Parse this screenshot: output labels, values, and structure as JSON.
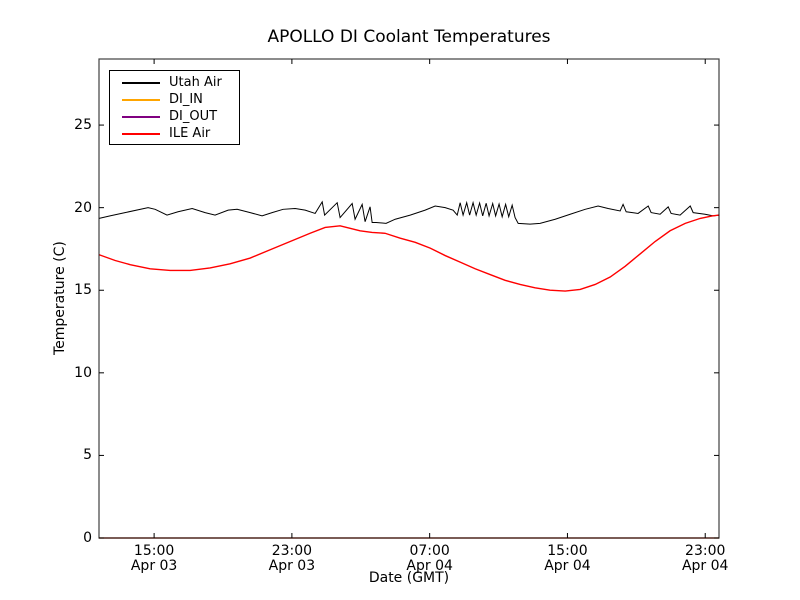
{
  "chart_data": {
    "type": "line",
    "title": "APOLLO DI Coolant Temperatures",
    "xlabel": "Date (GMT)",
    "ylabel": "Temperature (C)",
    "grid": false,
    "legend_position": "upper left",
    "x_unit": "hours since Apr 03 00:00 GMT",
    "xlim": [
      11.8,
      47.8
    ],
    "ylim": [
      0,
      29
    ],
    "y_ticks": [
      {
        "value": 0,
        "label": "0"
      },
      {
        "value": 5,
        "label": "5"
      },
      {
        "value": 10,
        "label": "10"
      },
      {
        "value": 15,
        "label": "15"
      },
      {
        "value": 20,
        "label": "20"
      },
      {
        "value": 25,
        "label": "25"
      }
    ],
    "x_ticks": [
      {
        "value": 15,
        "time": "15:00",
        "date": "Apr 03"
      },
      {
        "value": 23,
        "time": "23:00",
        "date": "Apr 03"
      },
      {
        "value": 31,
        "time": "07:00",
        "date": "Apr 04"
      },
      {
        "value": 39,
        "time": "15:00",
        "date": "Apr 04"
      },
      {
        "value": 47,
        "time": "23:00",
        "date": "Apr 04"
      }
    ],
    "series": [
      {
        "name": "Utah Air",
        "color": "#000000",
        "width": 1,
        "points": [
          [
            11.81,
            19.35
          ],
          [
            12.44,
            19.5
          ],
          [
            13.31,
            19.7
          ],
          [
            14.65,
            20.0
          ],
          [
            15.06,
            19.9
          ],
          [
            15.75,
            19.55
          ],
          [
            16.39,
            19.75
          ],
          [
            17.21,
            19.95
          ],
          [
            17.96,
            19.7
          ],
          [
            18.54,
            19.55
          ],
          [
            19.3,
            19.85
          ],
          [
            19.82,
            19.9
          ],
          [
            20.58,
            19.7
          ],
          [
            21.27,
            19.5
          ],
          [
            21.85,
            19.7
          ],
          [
            22.49,
            19.9
          ],
          [
            23.19,
            19.95
          ],
          [
            23.77,
            19.85
          ],
          [
            24.35,
            19.65
          ],
          [
            24.76,
            20.35
          ],
          [
            24.9,
            19.55
          ],
          [
            25.63,
            20.3
          ],
          [
            25.8,
            19.4
          ],
          [
            26.5,
            20.25
          ],
          [
            26.67,
            19.3
          ],
          [
            27.08,
            20.2
          ],
          [
            27.25,
            19.15
          ],
          [
            27.54,
            20.05
          ],
          [
            27.66,
            19.1
          ],
          [
            27.89,
            19.1
          ],
          [
            28.47,
            19.05
          ],
          [
            29.0,
            19.3
          ],
          [
            29.87,
            19.55
          ],
          [
            30.74,
            19.85
          ],
          [
            31.32,
            20.1
          ],
          [
            31.9,
            20.0
          ],
          [
            32.36,
            19.85
          ],
          [
            32.6,
            19.55
          ],
          [
            32.77,
            20.3
          ],
          [
            32.94,
            19.55
          ],
          [
            33.15,
            20.3
          ],
          [
            33.32,
            19.55
          ],
          [
            33.52,
            20.3
          ],
          [
            33.7,
            19.55
          ],
          [
            33.9,
            20.28
          ],
          [
            34.08,
            19.5
          ],
          [
            34.28,
            20.27
          ],
          [
            34.45,
            19.5
          ],
          [
            34.66,
            20.25
          ],
          [
            34.83,
            19.5
          ],
          [
            35.03,
            20.22
          ],
          [
            35.21,
            19.45
          ],
          [
            35.41,
            20.2
          ],
          [
            35.59,
            19.45
          ],
          [
            35.79,
            20.15
          ],
          [
            35.96,
            19.4
          ],
          [
            36.14,
            19.05
          ],
          [
            36.83,
            19.0
          ],
          [
            37.41,
            19.05
          ],
          [
            38.29,
            19.3
          ],
          [
            39.16,
            19.6
          ],
          [
            40.03,
            19.9
          ],
          [
            40.78,
            20.1
          ],
          [
            41.36,
            19.95
          ],
          [
            42.06,
            19.8
          ],
          [
            42.23,
            20.2
          ],
          [
            42.41,
            19.75
          ],
          [
            43.1,
            19.65
          ],
          [
            43.69,
            20.1
          ],
          [
            43.86,
            19.7
          ],
          [
            44.38,
            19.6
          ],
          [
            44.85,
            20.05
          ],
          [
            45.02,
            19.65
          ],
          [
            45.54,
            19.55
          ],
          [
            46.13,
            20.1
          ],
          [
            46.3,
            19.7
          ],
          [
            46.99,
            19.6
          ],
          [
            47.46,
            19.5
          ],
          [
            47.81,
            19.55
          ]
        ]
      },
      {
        "name": "DI_IN",
        "color": "#ffa500",
        "width": 1.2,
        "points": [
          [
            11.8,
            0
          ],
          [
            47.8,
            0
          ]
        ]
      },
      {
        "name": "DI_OUT",
        "color": "#800080",
        "width": 1.2,
        "opacity": 0.6,
        "points": [
          [
            11.8,
            0
          ],
          [
            47.8,
            0
          ]
        ]
      },
      {
        "name": "ILE Air",
        "color": "#ff0000",
        "width": 1.4,
        "points": [
          [
            11.81,
            17.15
          ],
          [
            12.74,
            16.8
          ],
          [
            13.61,
            16.55
          ],
          [
            14.77,
            16.3
          ],
          [
            15.93,
            16.2
          ],
          [
            17.09,
            16.2
          ],
          [
            18.25,
            16.35
          ],
          [
            19.41,
            16.6
          ],
          [
            20.58,
            16.95
          ],
          [
            21.74,
            17.45
          ],
          [
            22.9,
            17.95
          ],
          [
            24.06,
            18.45
          ],
          [
            24.93,
            18.8
          ],
          [
            25.8,
            18.9
          ],
          [
            26.38,
            18.75
          ],
          [
            26.96,
            18.6
          ],
          [
            27.66,
            18.5
          ],
          [
            28.41,
            18.45
          ],
          [
            29.29,
            18.15
          ],
          [
            30.16,
            17.9
          ],
          [
            31.03,
            17.55
          ],
          [
            31.9,
            17.1
          ],
          [
            32.77,
            16.7
          ],
          [
            33.64,
            16.3
          ],
          [
            34.51,
            15.95
          ],
          [
            35.38,
            15.6
          ],
          [
            36.25,
            15.35
          ],
          [
            37.12,
            15.15
          ],
          [
            37.99,
            15.0
          ],
          [
            38.87,
            14.95
          ],
          [
            39.74,
            15.05
          ],
          [
            40.61,
            15.35
          ],
          [
            41.48,
            15.8
          ],
          [
            42.35,
            16.45
          ],
          [
            43.22,
            17.2
          ],
          [
            44.09,
            17.95
          ],
          [
            44.96,
            18.6
          ],
          [
            45.84,
            19.05
          ],
          [
            46.71,
            19.35
          ],
          [
            47.4,
            19.5
          ],
          [
            47.81,
            19.55
          ]
        ]
      }
    ]
  }
}
